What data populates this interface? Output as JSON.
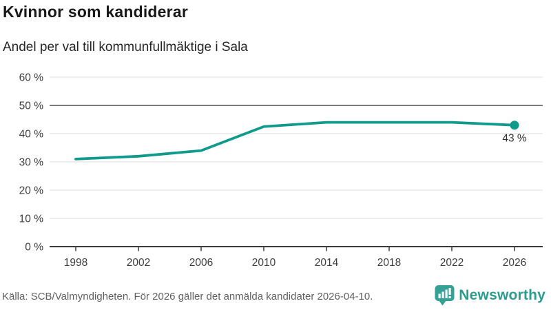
{
  "header": {
    "title": "Kvinnor som kandiderar",
    "subtitle": "Andel per val till kommunfullmäktige i Sala"
  },
  "chart_data": {
    "type": "line",
    "x": [
      1998,
      2002,
      2006,
      2010,
      2014,
      2018,
      2022,
      2026
    ],
    "values": [
      31,
      32,
      34,
      42.5,
      44,
      44,
      44,
      43
    ],
    "title": "Kvinnor som kandiderar",
    "subtitle": "Andel per val till kommunfullmäktige i Sala",
    "xlabel": "",
    "ylabel": "",
    "ylim": [
      0,
      60
    ],
    "y_ticks": [
      0,
      10,
      20,
      30,
      40,
      50,
      60
    ],
    "y_tick_suffix": " %",
    "end_label": "43 %",
    "reference_line_value": 50,
    "grid": true,
    "legend": "none",
    "line_color": "#109a8c",
    "marker_last_point_only": true
  },
  "footer": {
    "source": "Källa: SCB/Valmyndigheten. För 2026 gäller det anmälda kandidater 2026-04-10.",
    "brand": "Newsworthy"
  },
  "colors": {
    "accent_teal": "#109a8c",
    "brand_teal": "#2a9d8f",
    "grid_light": "#e4e4e4",
    "reference_line": "#7d7d7d",
    "axis_dark": "#3b3b3b",
    "tick_label": "#3d3d3d",
    "data_label": "#333333",
    "source_text": "#616161"
  }
}
